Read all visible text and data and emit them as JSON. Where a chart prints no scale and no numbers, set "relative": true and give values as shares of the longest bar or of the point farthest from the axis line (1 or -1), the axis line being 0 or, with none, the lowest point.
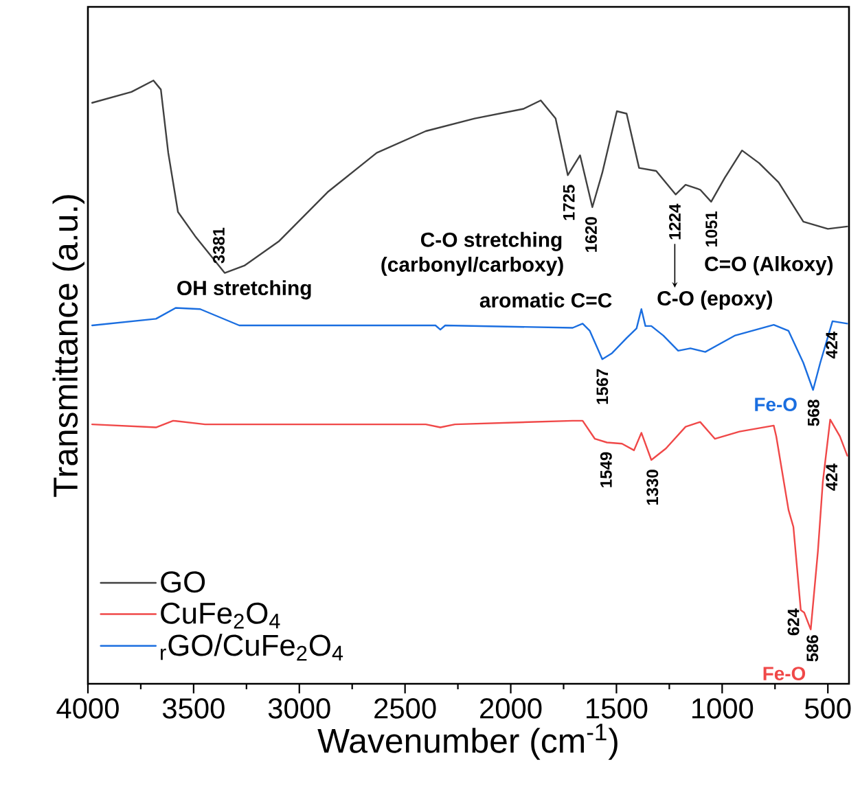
{
  "chart_data": {
    "type": "line",
    "relative": true,
    "xlabel": "Wavenumber (cm$^{-1}$)",
    "ylabel": "Transmittance (a.u.)",
    "xlim": [
      4000,
      400
    ],
    "xticks": [
      4000,
      3500,
      3000,
      2500,
      2000,
      1500,
      1000,
      500
    ],
    "tick_labels": "x",
    "legend": "bottom left",
    "grid": false,
    "marker": "none",
    "line_style": "solid",
    "series": [
      {
        "name": "GO",
        "color": "#404040",
        "x": [
          3980,
          3794,
          3690,
          3655,
          3620,
          3574,
          3493,
          3353,
          3260,
          3098,
          2866,
          2634,
          2402,
          2171,
          1939,
          1858,
          1788,
          1730,
          1672,
          1614,
          1567,
          1498,
          1452,
          1393,
          1312,
          1220,
          1173,
          1104,
          1052,
          987,
          906,
          825,
          733,
          616,
          500,
          408
        ],
        "values": [
          0.963,
          0.981,
          1.0,
          0.985,
          0.88,
          0.782,
          0.742,
          0.681,
          0.693,
          0.733,
          0.815,
          0.88,
          0.916,
          0.937,
          0.953,
          0.967,
          0.937,
          0.843,
          0.876,
          0.79,
          0.847,
          0.949,
          0.945,
          0.855,
          0.85,
          0.811,
          0.827,
          0.819,
          0.799,
          0.839,
          0.884,
          0.863,
          0.831,
          0.766,
          0.754,
          0.758
        ]
      },
      {
        "name": "CuFe$_{2}$O$_{4}$",
        "color": "#f04848",
        "x": [
          3980,
          3678,
          3597,
          3446,
          2402,
          2333,
          2264,
          1707,
          1660,
          1602,
          1545,
          1474,
          1417,
          1382,
          1335,
          1266,
          1173,
          1104,
          1034,
          918,
          756,
          744,
          686,
          663,
          628,
          612,
          581,
          547,
          524,
          489,
          443,
          408
        ],
        "values": [
          0.43,
          0.425,
          0.436,
          0.43,
          0.43,
          0.425,
          0.43,
          0.436,
          0.436,
          0.406,
          0.4,
          0.398,
          0.387,
          0.416,
          0.371,
          0.39,
          0.426,
          0.434,
          0.406,
          0.418,
          0.428,
          0.41,
          0.288,
          0.26,
          0.122,
          0.118,
          0.09,
          0.22,
          0.334,
          0.438,
          0.41,
          0.378
        ]
      },
      {
        "name": "$_{r}$GO/CuFe$_{2}$O$_{4}$",
        "color": "#1a6ee0",
        "x": [
          3980,
          3678,
          3585,
          3469,
          3284,
          2634,
          2356,
          2333,
          2310,
          1707,
          1660,
          1626,
          1567,
          1521,
          1452,
          1405,
          1382,
          1363,
          1335,
          1278,
          1208,
          1150,
          1080,
          941,
          756,
          686,
          616,
          570,
          536,
          478,
          408
        ],
        "values": [
          0.594,
          0.605,
          0.623,
          0.621,
          0.594,
          0.594,
          0.594,
          0.587,
          0.594,
          0.59,
          0.597,
          0.585,
          0.538,
          0.548,
          0.573,
          0.589,
          0.621,
          0.593,
          0.593,
          0.577,
          0.552,
          0.556,
          0.55,
          0.577,
          0.595,
          0.585,
          0.532,
          0.487,
          0.532,
          0.601,
          0.597
        ]
      }
    ],
    "annotations": [
      {
        "text": "3381",
        "x": 3381,
        "y": 0.681
      },
      {
        "text": "1725",
        "x": 1725,
        "y": 0.843
      },
      {
        "text": "1620",
        "x": 1620,
        "y": 0.79
      },
      {
        "text": "1224",
        "x": 1224,
        "y": 0.811
      },
      {
        "text": "1051",
        "x": 1051,
        "y": 0.799
      },
      {
        "text": "1567",
        "x": 1567,
        "y": 0.538
      },
      {
        "text": "568",
        "x": 568,
        "y": 0.487
      },
      {
        "text": "424",
        "x": 424,
        "y": 0.597
      },
      {
        "text": "1549",
        "x": 1549,
        "y": 0.4
      },
      {
        "text": "1330",
        "x": 1330,
        "y": 0.371
      },
      {
        "text": "424",
        "x": 424,
        "y": 0.378
      },
      {
        "text": "624",
        "x": 624,
        "y": 0.122
      },
      {
        "text": "586",
        "x": 586,
        "y": 0.09
      },
      "Fe-O",
      "Fe-O",
      "OH stretching",
      "C-O stretching",
      "(carbonyl/carboxy)",
      "aromatic C=C",
      "C-O (epoxy)",
      "C=O (Alkoxy)"
    ]
  }
}
